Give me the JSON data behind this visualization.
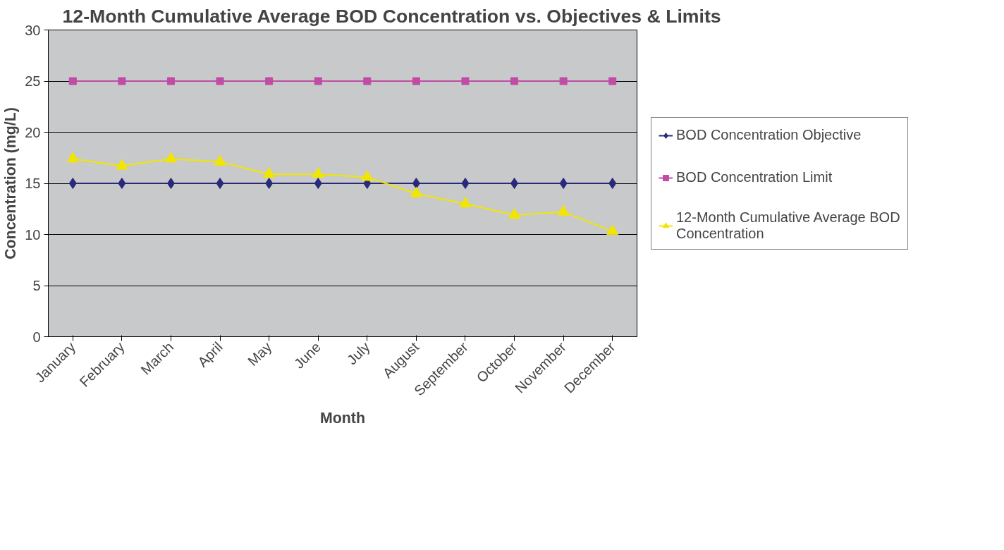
{
  "chart_data": {
    "type": "line",
    "title": "12-Month Cumulative Average BOD Concentration vs. Objectives & Limits",
    "xlabel": "Month",
    "ylabel": "Concentration (mg/L)",
    "categories": [
      "January",
      "February",
      "March",
      "April",
      "May",
      "June",
      "July",
      "August",
      "September",
      "October",
      "November",
      "December"
    ],
    "series": [
      {
        "name": "BOD Concentration Objective",
        "color": "#2a2a7a",
        "marker": "diamond",
        "values": [
          15,
          15,
          15,
          15,
          15,
          15,
          15,
          15,
          15,
          15,
          15,
          15
        ]
      },
      {
        "name": "BOD Concentration Limit",
        "color": "#c04ca4",
        "marker": "square",
        "values": [
          25,
          25,
          25,
          25,
          25,
          25,
          25,
          25,
          25,
          25,
          25,
          25
        ]
      },
      {
        "name": "12-Month Cumulative Average BOD Concentration",
        "color": "#f2e600",
        "marker": "triangle",
        "values": [
          17.4,
          16.7,
          17.4,
          17.1,
          15.9,
          15.9,
          15.6,
          14.0,
          13.0,
          11.9,
          12.2,
          10.3
        ]
      }
    ],
    "ylim": [
      0,
      30
    ],
    "yticks": [
      0,
      5,
      10,
      15,
      20,
      25,
      30
    ],
    "grid": "y",
    "legend": "right",
    "line_style": "solid"
  }
}
